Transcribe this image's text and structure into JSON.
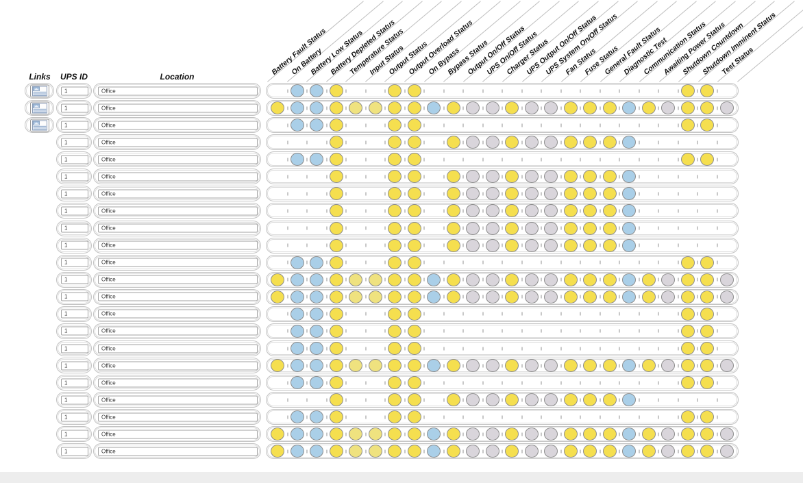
{
  "left_headers": {
    "links": "Links",
    "ups_id": "UPS ID",
    "location": "Location"
  },
  "columns": [
    "Battery Fault Status",
    "On Battery",
    "Battery Low Status",
    "Battery Depleted Status",
    "Temperature Status",
    "Input Status",
    "Output Status",
    "Output Overload Status",
    "On Bypass",
    "Bypass Status",
    "Output On/Off Status",
    "UPS On/Off Status",
    "Charger Status",
    "UPS Output On/Off Status",
    "UPS System On/Off Status",
    "Fan Status",
    "Fuse Status",
    "General Fault Status",
    "Diagnostic Test",
    "Communication Status",
    "Awaiting Power Status",
    "Shutdown Countdown",
    "Shutdown Imminent Status",
    "Test Status"
  ],
  "colors": {
    "Y": "#f5df4f",
    "y": "#efe27f",
    "B": "#aacfe8",
    "G": "#d9d5db",
    "circle_border": "#8c8c8c",
    "tick": "#c8c8c8",
    "header_line": "#bdbdbd"
  },
  "icons": {
    "links_button": "report-icon"
  },
  "rows": [
    {
      "links": true,
      "ups_id": "1",
      "location": "Office",
      "cells": [
        "",
        "B",
        "B",
        "Y",
        "",
        "",
        "Y",
        "Y",
        "",
        "",
        "",
        "",
        "",
        "",
        "",
        "",
        "",
        "",
        "",
        "",
        "",
        "Y",
        "Y",
        ""
      ]
    },
    {
      "links": true,
      "ups_id": "1",
      "location": "Office",
      "cells": [
        "Y",
        "B",
        "B",
        "Y",
        "y",
        "y",
        "Y",
        "Y",
        "B",
        "Y",
        "G",
        "G",
        "Y",
        "G",
        "G",
        "Y",
        "Y",
        "Y",
        "B",
        "Y",
        "G",
        "Y",
        "Y",
        "G"
      ]
    },
    {
      "links": true,
      "ups_id": "1",
      "location": "Office",
      "cells": [
        "",
        "B",
        "B",
        "Y",
        "",
        "",
        "Y",
        "Y",
        "",
        "",
        "",
        "",
        "",
        "",
        "",
        "",
        "",
        "",
        "",
        "",
        "",
        "Y",
        "Y",
        ""
      ]
    },
    {
      "links": false,
      "ups_id": "1",
      "location": "Office",
      "cells": [
        "",
        "",
        "",
        "Y",
        "",
        "",
        "Y",
        "Y",
        "",
        "Y",
        "G",
        "G",
        "Y",
        "G",
        "G",
        "Y",
        "Y",
        "Y",
        "B",
        "",
        "",
        "",
        "",
        ""
      ]
    },
    {
      "links": false,
      "ups_id": "1",
      "location": "Office",
      "cells": [
        "",
        "B",
        "B",
        "Y",
        "",
        "",
        "Y",
        "Y",
        "",
        "",
        "",
        "",
        "",
        "",
        "",
        "",
        "",
        "",
        "",
        "",
        "",
        "Y",
        "Y",
        ""
      ]
    },
    {
      "links": false,
      "ups_id": "1",
      "location": "Office",
      "cells": [
        "",
        "",
        "",
        "Y",
        "",
        "",
        "Y",
        "Y",
        "",
        "Y",
        "G",
        "G",
        "Y",
        "G",
        "G",
        "Y",
        "Y",
        "Y",
        "B",
        "",
        "",
        "",
        "",
        ""
      ]
    },
    {
      "links": false,
      "ups_id": "1",
      "location": "Office",
      "cells": [
        "",
        "",
        "",
        "Y",
        "",
        "",
        "Y",
        "Y",
        "",
        "Y",
        "G",
        "G",
        "Y",
        "G",
        "G",
        "Y",
        "Y",
        "Y",
        "B",
        "",
        "",
        "",
        "",
        ""
      ]
    },
    {
      "links": false,
      "ups_id": "1",
      "location": "Office",
      "cells": [
        "",
        "",
        "",
        "Y",
        "",
        "",
        "Y",
        "Y",
        "",
        "Y",
        "G",
        "G",
        "Y",
        "G",
        "G",
        "Y",
        "Y",
        "Y",
        "B",
        "",
        "",
        "",
        "",
        ""
      ]
    },
    {
      "links": false,
      "ups_id": "1",
      "location": "Office",
      "cells": [
        "",
        "",
        "",
        "Y",
        "",
        "",
        "Y",
        "Y",
        "",
        "Y",
        "G",
        "G",
        "Y",
        "G",
        "G",
        "Y",
        "Y",
        "Y",
        "B",
        "",
        "",
        "",
        "",
        ""
      ]
    },
    {
      "links": false,
      "ups_id": "1",
      "location": "Office",
      "cells": [
        "",
        "",
        "",
        "Y",
        "",
        "",
        "Y",
        "Y",
        "",
        "Y",
        "G",
        "G",
        "Y",
        "G",
        "G",
        "Y",
        "Y",
        "Y",
        "B",
        "",
        "",
        "",
        "",
        ""
      ]
    },
    {
      "links": false,
      "ups_id": "1",
      "location": "Office",
      "cells": [
        "",
        "B",
        "B",
        "Y",
        "",
        "",
        "Y",
        "Y",
        "",
        "",
        "",
        "",
        "",
        "",
        "",
        "",
        "",
        "",
        "",
        "",
        "",
        "Y",
        "Y",
        ""
      ]
    },
    {
      "links": false,
      "ups_id": "1",
      "location": "Office",
      "cells": [
        "Y",
        "B",
        "B",
        "Y",
        "y",
        "y",
        "Y",
        "Y",
        "B",
        "Y",
        "G",
        "G",
        "Y",
        "G",
        "G",
        "Y",
        "Y",
        "Y",
        "B",
        "Y",
        "G",
        "Y",
        "Y",
        "G"
      ]
    },
    {
      "links": false,
      "ups_id": "1",
      "location": "Office",
      "cells": [
        "Y",
        "B",
        "B",
        "Y",
        "y",
        "y",
        "Y",
        "Y",
        "B",
        "Y",
        "G",
        "G",
        "Y",
        "G",
        "G",
        "Y",
        "Y",
        "Y",
        "B",
        "Y",
        "G",
        "Y",
        "Y",
        "G"
      ]
    },
    {
      "links": false,
      "ups_id": "1",
      "location": "Office",
      "cells": [
        "",
        "B",
        "B",
        "Y",
        "",
        "",
        "Y",
        "Y",
        "",
        "",
        "",
        "",
        "",
        "",
        "",
        "",
        "",
        "",
        "",
        "",
        "",
        "Y",
        "Y",
        ""
      ]
    },
    {
      "links": false,
      "ups_id": "1",
      "location": "Office",
      "cells": [
        "",
        "B",
        "B",
        "Y",
        "",
        "",
        "Y",
        "Y",
        "",
        "",
        "",
        "",
        "",
        "",
        "",
        "",
        "",
        "",
        "",
        "",
        "",
        "Y",
        "Y",
        ""
      ]
    },
    {
      "links": false,
      "ups_id": "1",
      "location": "Office",
      "cells": [
        "",
        "B",
        "B",
        "Y",
        "",
        "",
        "Y",
        "Y",
        "",
        "",
        "",
        "",
        "",
        "",
        "",
        "",
        "",
        "",
        "",
        "",
        "",
        "Y",
        "Y",
        ""
      ]
    },
    {
      "links": false,
      "ups_id": "1",
      "location": "Office",
      "cells": [
        "Y",
        "B",
        "B",
        "Y",
        "y",
        "y",
        "Y",
        "Y",
        "B",
        "Y",
        "G",
        "G",
        "Y",
        "G",
        "G",
        "Y",
        "Y",
        "Y",
        "B",
        "Y",
        "G",
        "Y",
        "Y",
        "G"
      ]
    },
    {
      "links": false,
      "ups_id": "1",
      "location": "Office",
      "cells": [
        "",
        "B",
        "B",
        "Y",
        "",
        "",
        "Y",
        "Y",
        "",
        "",
        "",
        "",
        "",
        "",
        "",
        "",
        "",
        "",
        "",
        "",
        "",
        "Y",
        "Y",
        ""
      ]
    },
    {
      "links": false,
      "ups_id": "1",
      "location": "Office",
      "cells": [
        "",
        "",
        "",
        "Y",
        "",
        "",
        "Y",
        "Y",
        "",
        "Y",
        "G",
        "G",
        "Y",
        "G",
        "G",
        "Y",
        "Y",
        "Y",
        "B",
        "",
        "",
        "",
        "",
        ""
      ]
    },
    {
      "links": false,
      "ups_id": "1",
      "location": "Office",
      "cells": [
        "",
        "B",
        "B",
        "Y",
        "",
        "",
        "Y",
        "Y",
        "",
        "",
        "",
        "",
        "",
        "",
        "",
        "",
        "",
        "",
        "",
        "",
        "",
        "Y",
        "Y",
        ""
      ]
    },
    {
      "links": false,
      "ups_id": "1",
      "location": "Office",
      "cells": [
        "Y",
        "B",
        "B",
        "Y",
        "y",
        "y",
        "Y",
        "Y",
        "B",
        "Y",
        "G",
        "G",
        "Y",
        "G",
        "G",
        "Y",
        "Y",
        "Y",
        "B",
        "Y",
        "G",
        "Y",
        "Y",
        "G"
      ]
    },
    {
      "links": false,
      "ups_id": "1",
      "location": "Office",
      "cells": [
        "Y",
        "B",
        "B",
        "Y",
        "y",
        "y",
        "Y",
        "Y",
        "B",
        "Y",
        "G",
        "G",
        "Y",
        "G",
        "G",
        "Y",
        "Y",
        "Y",
        "B",
        "Y",
        "G",
        "Y",
        "Y",
        "G"
      ]
    }
  ]
}
